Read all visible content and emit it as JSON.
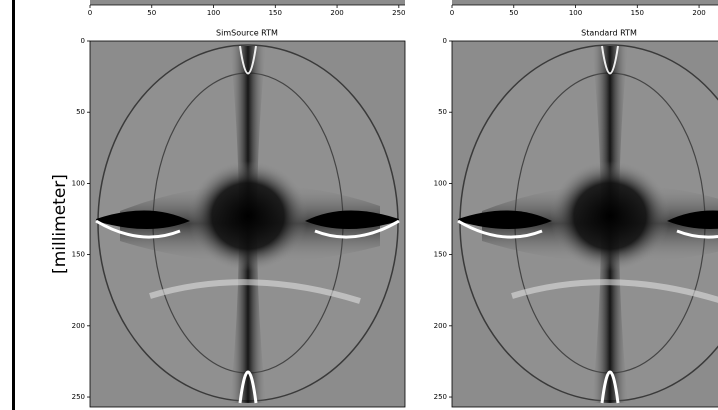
{
  "chart_data": [
    {
      "type": "image",
      "xlim": [
        0,
        255
      ],
      "xticks": [
        0,
        50,
        100,
        150,
        200,
        250
      ]
    },
    {
      "type": "image",
      "xlim": [
        0,
        255
      ],
      "xticks": [
        0,
        50,
        100,
        150,
        200
      ]
    },
    {
      "type": "image",
      "title": "SimSource RTM",
      "ylabel": "[millimeter]",
      "ylim": [
        0,
        257
      ],
      "yticks": [
        0,
        50,
        100,
        150,
        200,
        250
      ]
    },
    {
      "type": "image",
      "title": "Standard RTM",
      "ylim": [
        0,
        257
      ],
      "yticks": [
        0,
        50,
        100,
        150,
        200,
        250
      ]
    }
  ]
}
